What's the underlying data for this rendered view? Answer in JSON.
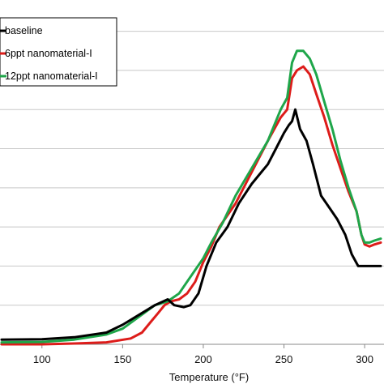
{
  "chart_data": {
    "type": "line",
    "title": "",
    "xlabel": "Temperature (°F)",
    "ylabel": "",
    "xlim": [
      74,
      312
    ],
    "ylim": [
      0,
      0.88
    ],
    "x_ticks": [
      "100",
      "150",
      "200",
      "250",
      "300"
    ],
    "x_tick_values": [
      100,
      150,
      200,
      250,
      300
    ],
    "y_gridlines": [
      0.1,
      0.2,
      0.3,
      0.4,
      0.5,
      0.6,
      0.7,
      0.8
    ],
    "grid": "horizontal",
    "legend_position": "top-left",
    "series": [
      {
        "name": "baseline",
        "color": "#000000",
        "x": [
          75,
          100,
          120,
          140,
          150,
          160,
          170,
          178,
          182,
          188,
          192,
          197,
          202,
          208,
          215,
          222,
          230,
          236,
          240,
          245,
          250,
          253,
          255,
          257,
          260,
          264,
          268,
          273,
          278,
          283,
          288,
          292,
          296,
          298,
          300,
          303,
          306,
          310
        ],
        "y": [
          0.012,
          0.013,
          0.018,
          0.03,
          0.05,
          0.075,
          0.1,
          0.115,
          0.1,
          0.095,
          0.1,
          0.13,
          0.2,
          0.26,
          0.3,
          0.36,
          0.41,
          0.44,
          0.46,
          0.5,
          0.54,
          0.56,
          0.57,
          0.6,
          0.55,
          0.52,
          0.46,
          0.38,
          0.35,
          0.32,
          0.28,
          0.23,
          0.2,
          0.2,
          0.2,
          0.2,
          0.2,
          0.2
        ]
      },
      {
        "name": "6ppt nanomaterial-I",
        "color": "#dd1c1a",
        "x": [
          75,
          100,
          120,
          140,
          155,
          162,
          168,
          172,
          176,
          180,
          185,
          190,
          195,
          200,
          205,
          210,
          220,
          230,
          240,
          248,
          252,
          255,
          258,
          262,
          266,
          270,
          275,
          280,
          285,
          290,
          295,
          298,
          300,
          303,
          306,
          310
        ],
        "y": [
          0.0,
          0.0,
          0.002,
          0.005,
          0.015,
          0.03,
          0.06,
          0.08,
          0.1,
          0.11,
          0.115,
          0.13,
          0.16,
          0.21,
          0.25,
          0.3,
          0.36,
          0.44,
          0.52,
          0.58,
          0.6,
          0.68,
          0.7,
          0.71,
          0.69,
          0.64,
          0.58,
          0.51,
          0.45,
          0.39,
          0.34,
          0.28,
          0.255,
          0.25,
          0.255,
          0.26
        ]
      },
      {
        "name": "12ppt nanomaterial-I",
        "color": "#1fa64a",
        "x": [
          75,
          100,
          120,
          140,
          150,
          160,
          170,
          178,
          185,
          190,
          195,
          200,
          205,
          212,
          220,
          230,
          240,
          248,
          252,
          255,
          258,
          262,
          266,
          270,
          275,
          280,
          285,
          290,
          295,
          298,
          300,
          303,
          306,
          310
        ],
        "y": [
          0.005,
          0.006,
          0.012,
          0.025,
          0.04,
          0.07,
          0.1,
          0.11,
          0.13,
          0.16,
          0.19,
          0.22,
          0.26,
          0.31,
          0.38,
          0.45,
          0.52,
          0.6,
          0.63,
          0.72,
          0.75,
          0.75,
          0.73,
          0.69,
          0.62,
          0.55,
          0.47,
          0.4,
          0.34,
          0.28,
          0.26,
          0.26,
          0.265,
          0.27
        ]
      }
    ]
  }
}
